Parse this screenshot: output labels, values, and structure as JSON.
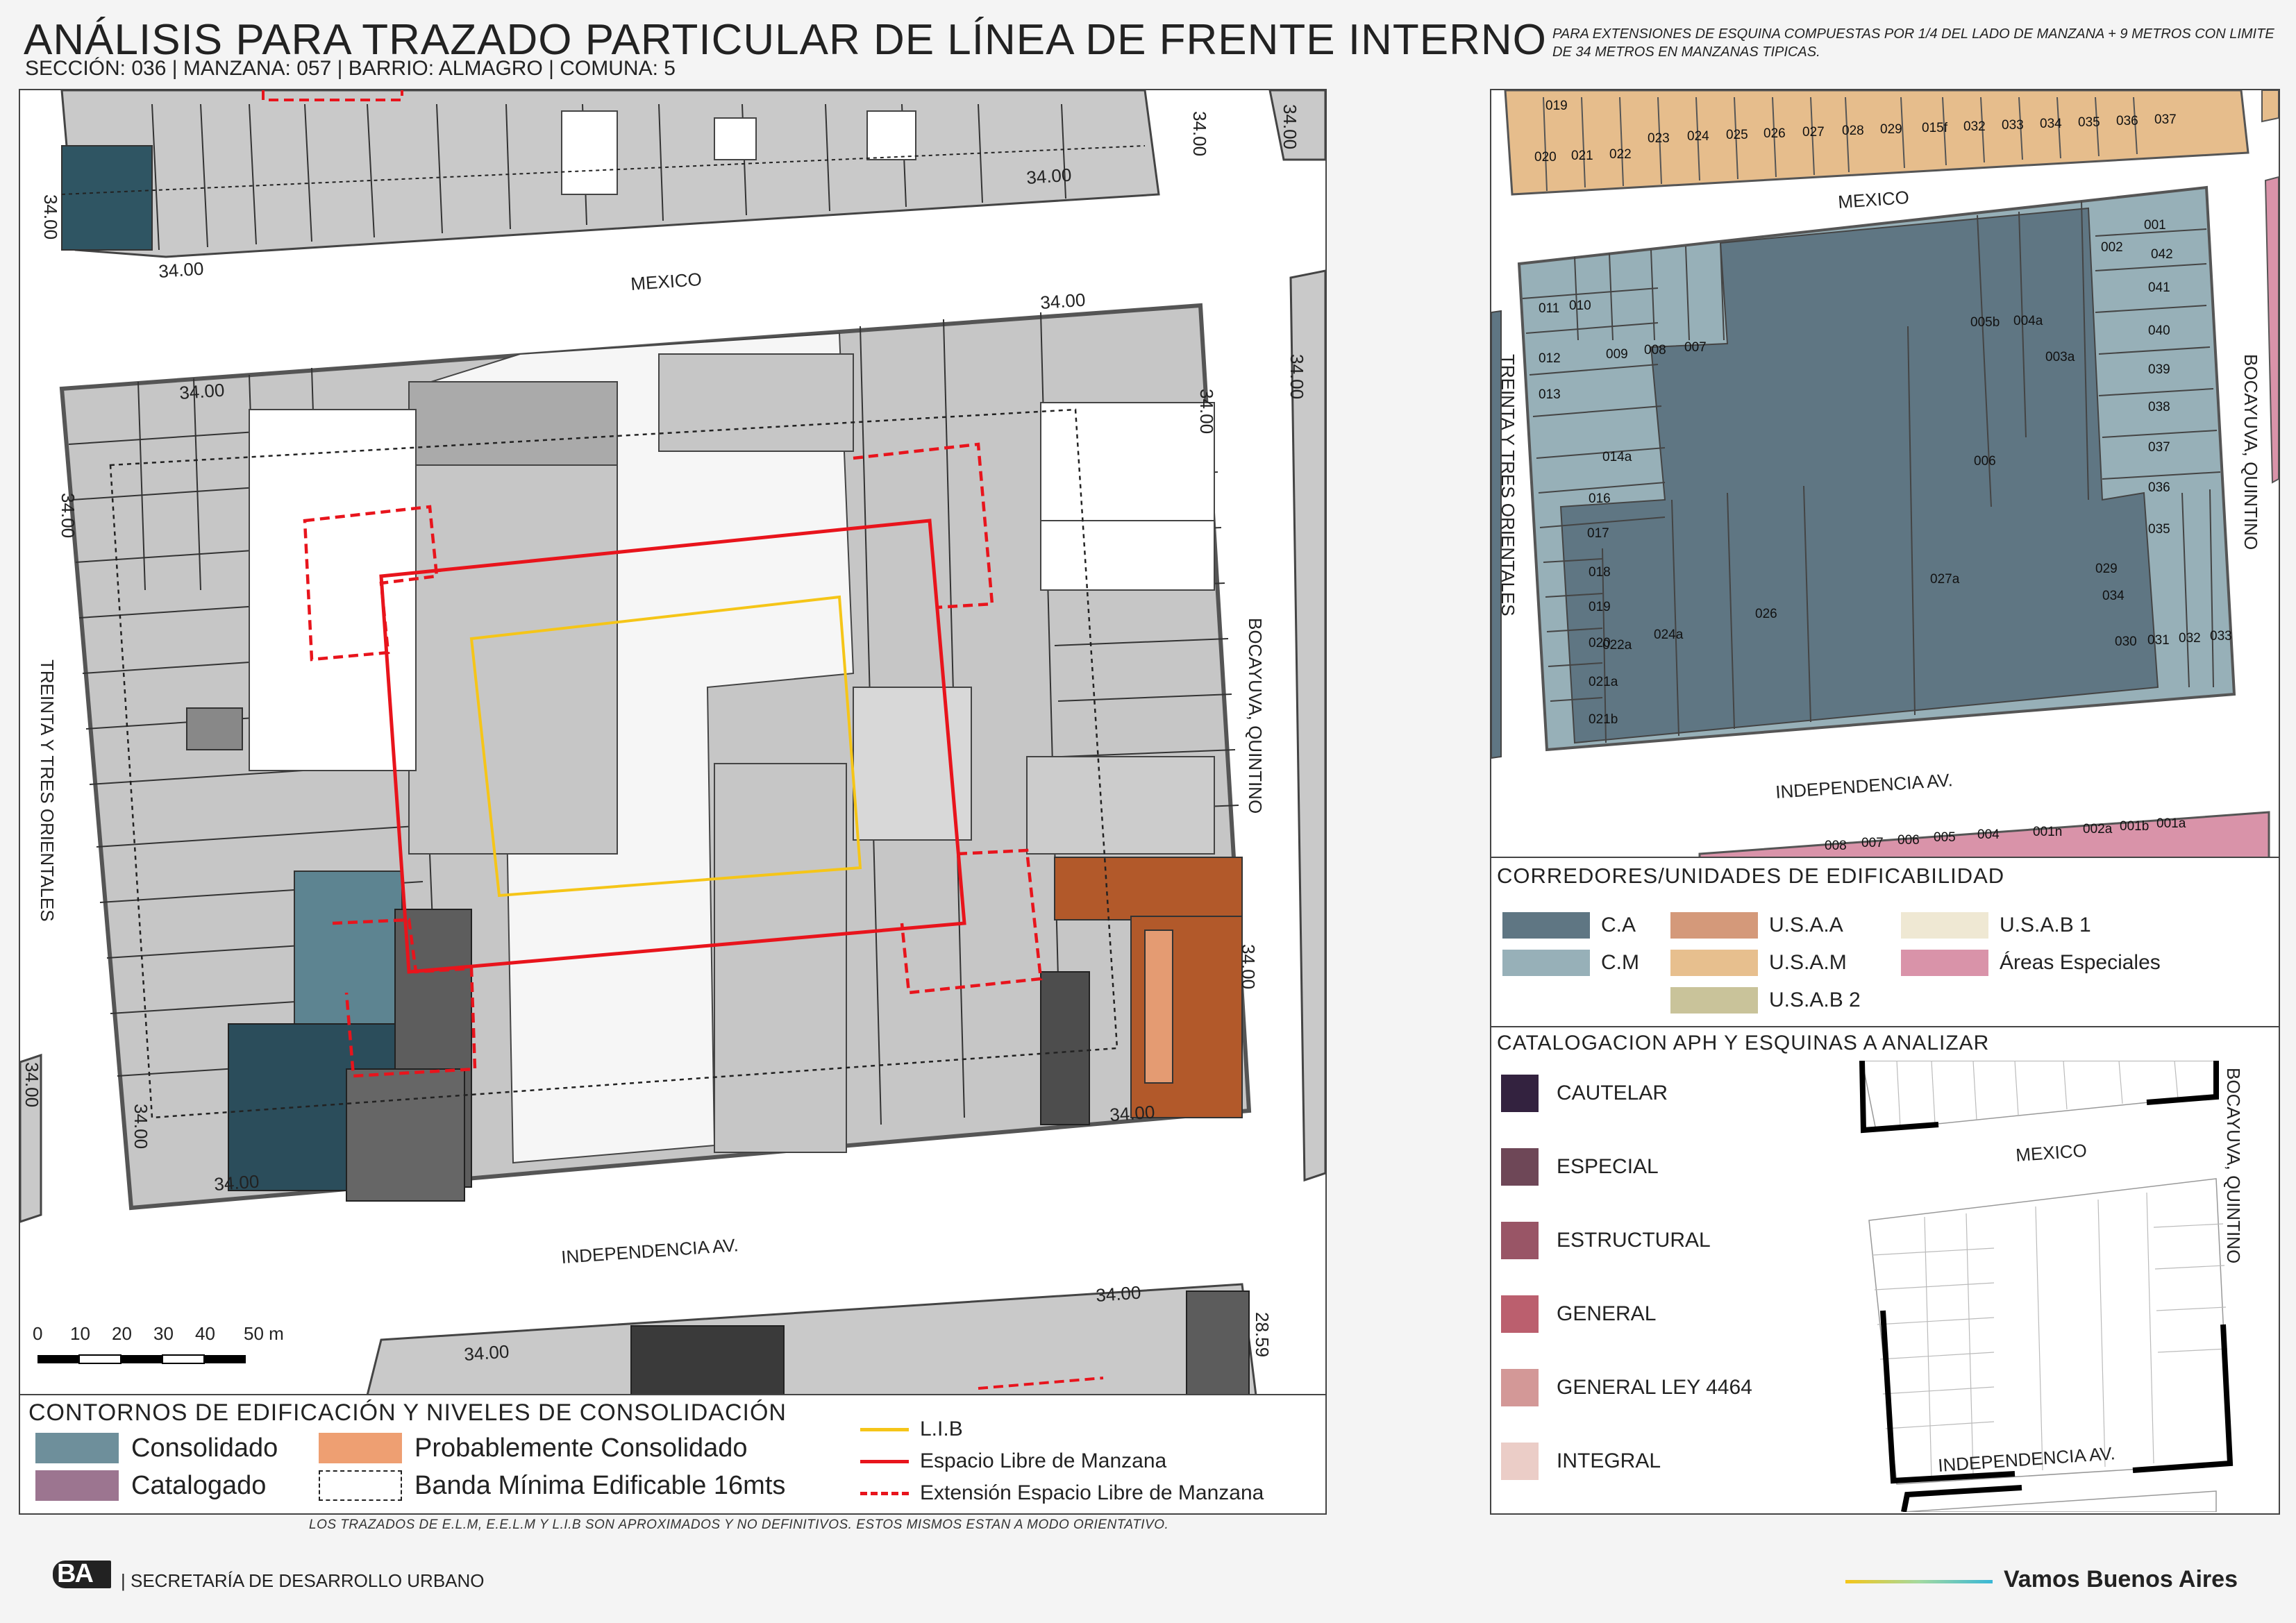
{
  "header": {
    "title": "ANÁLISIS PARA TRAZADO PARTICULAR DE LÍNEA DE FRENTE INTERNO",
    "subtitle": "SECCIÓN: 036 |  MANZANA: 057 | BARRIO: ALMAGRO | COMUNA: 5",
    "note": "PARA EXTENSIONES DE ESQUINA COMPUESTAS POR 1/4 DEL LADO DE MANZANA + 9 METROS CON LIMITE DE 34 METROS EN MANZANAS TIPICAS."
  },
  "streets": {
    "north": "MEXICO",
    "south": "INDEPENDENCIA AV.",
    "west": "TREINTA Y TRES ORIENTALES",
    "east": "BOCAYUVA, QUINTINO"
  },
  "dimensions": {
    "d34": "34.00",
    "d28": "28.59"
  },
  "scale": {
    "ticks": [
      "0",
      "10",
      "20",
      "30",
      "40",
      "50 m"
    ]
  },
  "legend_main": {
    "title": "CONTORNOS DE EDIFICACIÓN Y NIVELES DE CONSOLIDACIÓN",
    "items": [
      {
        "label": "Consolidado",
        "color": "#6e8f9b"
      },
      {
        "label": "Probablemente Consolidado",
        "color": "#ee9f72"
      },
      {
        "label": "Catalogado",
        "color": "#9c7590"
      },
      {
        "label": "Banda Mínima Edificable 16mts",
        "style": "dashed"
      }
    ],
    "lines": [
      {
        "label": "L.I.B",
        "color": "#f5c518",
        "style": "solid"
      },
      {
        "label": "Espacio Libre de Manzana",
        "color": "#e8141c",
        "style": "solid"
      },
      {
        "label": "Extensión Espacio Libre de Manzana",
        "color": "#e8141c",
        "style": "dashed"
      }
    ]
  },
  "footnote": "LOS TRAZADOS DE E.L.M, E.E.L.M Y L.I.B SON APROXIMADOS Y NO DEFINITIVOS. ESTOS MISMOS ESTAN A MODO ORIENTATIVO.",
  "lots": {
    "north": [
      "019",
      "020",
      "021",
      "022",
      "023",
      "024",
      "025",
      "026",
      "027",
      "028",
      "029",
      "015f",
      "032",
      "033",
      "034",
      "035",
      "036",
      "037"
    ],
    "block": [
      "011",
      "010",
      "012",
      "013",
      "009",
      "008",
      "007",
      "014a",
      "016",
      "017",
      "018",
      "019",
      "020",
      "021a",
      "021b",
      "022a",
      "024a",
      "026",
      "006",
      "005b",
      "004a",
      "003a",
      "002",
      "001",
      "042",
      "041",
      "040",
      "039",
      "038",
      "037",
      "036",
      "035",
      "034",
      "029",
      "027a",
      "030",
      "031",
      "032",
      "033"
    ],
    "south": [
      "008",
      "007",
      "006",
      "005",
      "004",
      "001n",
      "002a",
      "001b",
      "001a"
    ]
  },
  "corredores": {
    "title": "CORREDORES/UNIDADES DE EDIFICABILIDAD",
    "items": [
      {
        "label": "C.A",
        "color": "#5f7683"
      },
      {
        "label": "C.M",
        "color": "#97b0b8"
      },
      {
        "label": "U.S.A.A",
        "color": "#d4997a"
      },
      {
        "label": "U.S.A.M",
        "color": "#e7bf8e"
      },
      {
        "label": "U.S.A.B 2",
        "color": "#c9c39a"
      },
      {
        "label": "U.S.A.B 1",
        "color": "#efe8d3"
      },
      {
        "label": "Áreas Especiales",
        "color": "#d993a9"
      }
    ]
  },
  "catalogacion": {
    "title": "CATALOGACION APH Y ESQUINAS A ANALIZAR",
    "items": [
      {
        "label": "CAUTELAR",
        "color": "#33223f"
      },
      {
        "label": "ESPECIAL",
        "color": "#6e4757"
      },
      {
        "label": "ESTRUCTURAL",
        "color": "#995566"
      },
      {
        "label": "GENERAL",
        "color": "#bb5f6e"
      },
      {
        "label": "GENERAL LEY 4464",
        "color": "#d39897"
      },
      {
        "label": "INTEGRAL",
        "color": "#ebcdc7"
      }
    ]
  },
  "footer": {
    "logo": "BA",
    "agency": "| SECRETARÍA DE DESARROLLO URBANO",
    "slogan": "Vamos Buenos Aires"
  }
}
